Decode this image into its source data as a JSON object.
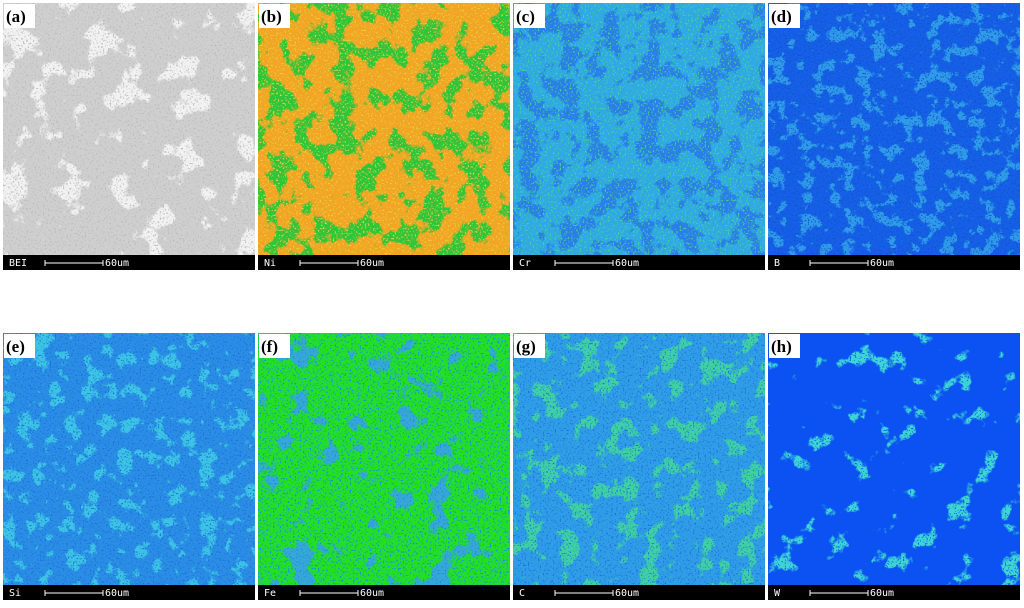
{
  "panels": [
    {
      "label": "(a)",
      "channel": "BEI",
      "scale": "60um"
    },
    {
      "label": "(b)",
      "channel": "Ni",
      "scale": "60um"
    },
    {
      "label": "(c)",
      "channel": "Cr",
      "scale": "60um"
    },
    {
      "label": "(d)",
      "channel": "B",
      "scale": "60um"
    },
    {
      "label": "(e)",
      "channel": "Si",
      "scale": "60um"
    },
    {
      "label": "(f)",
      "channel": "Fe",
      "scale": "60um"
    },
    {
      "label": "(g)",
      "channel": "C",
      "scale": "60um"
    },
    {
      "label": "(h)",
      "channel": "W",
      "scale": "60um"
    }
  ]
}
